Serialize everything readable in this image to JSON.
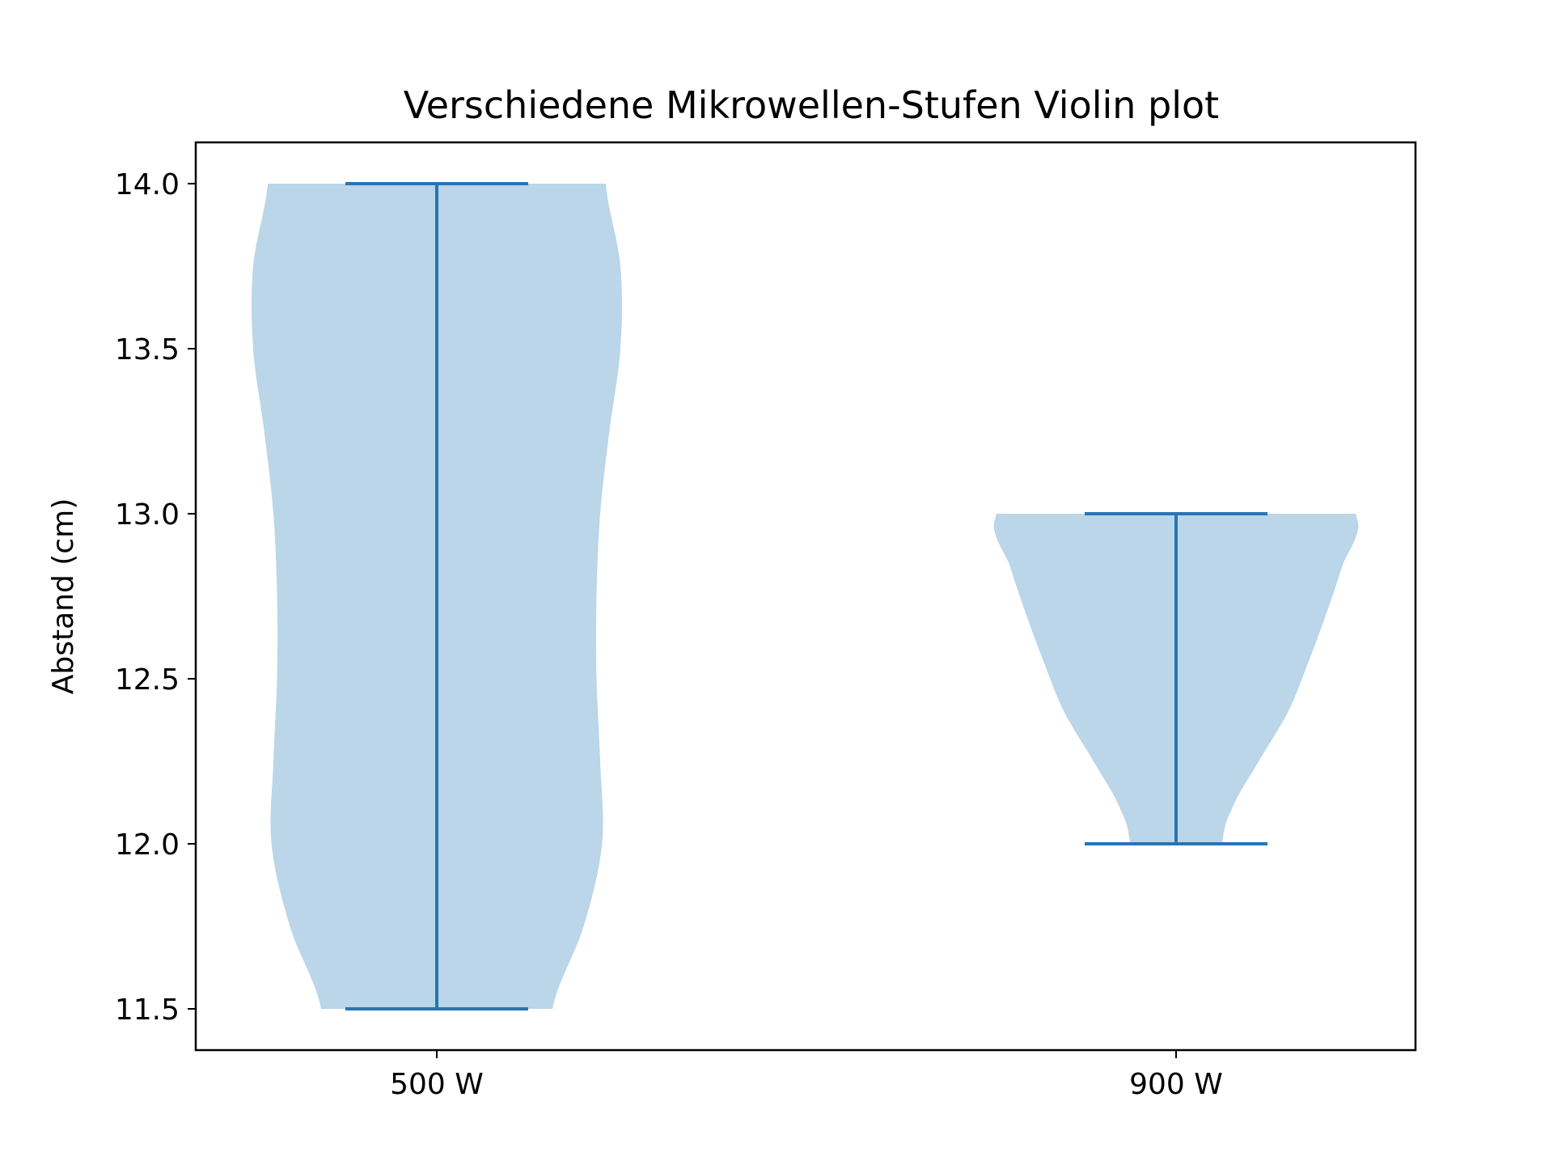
{
  "chart_data": {
    "type": "violin",
    "title": "Verschiedene Mikrowellen-Stufen Violin plot",
    "xlabel": "",
    "ylabel": "Abstand (cm)",
    "categories": [
      "500 W",
      "900 W"
    ],
    "ylim": [
      11.375,
      14.125
    ],
    "yticks": [
      11.5,
      12.0,
      12.5,
      13.0,
      13.5,
      14.0
    ],
    "ytick_labels": [
      "11.5",
      "12.0",
      "12.5",
      "13.0",
      "13.5",
      "14.0"
    ],
    "grid": false,
    "colors": {
      "body": "#bad6e8",
      "lines": "#2775b6"
    },
    "violins": [
      {
        "category": "500 W",
        "min": 11.5,
        "max": 14.0,
        "density_profile": [
          [
            11.5,
            0.63
          ],
          [
            11.75,
            0.8
          ],
          [
            12.0,
            0.9
          ],
          [
            12.25,
            0.89
          ],
          [
            12.5,
            0.87
          ],
          [
            12.75,
            0.87
          ],
          [
            13.0,
            0.89
          ],
          [
            13.25,
            0.94
          ],
          [
            13.5,
            1.0
          ],
          [
            13.75,
            1.0
          ],
          [
            14.0,
            0.92
          ]
        ]
      },
      {
        "category": "900 W",
        "min": 12.0,
        "max": 13.0,
        "density_profile": [
          [
            12.0,
            0.25
          ],
          [
            12.1,
            0.3
          ],
          [
            12.25,
            0.45
          ],
          [
            12.4,
            0.61
          ],
          [
            12.55,
            0.72
          ],
          [
            12.7,
            0.82
          ],
          [
            12.85,
            0.91
          ],
          [
            12.95,
            0.99
          ],
          [
            13.0,
            0.98
          ]
        ]
      }
    ]
  }
}
